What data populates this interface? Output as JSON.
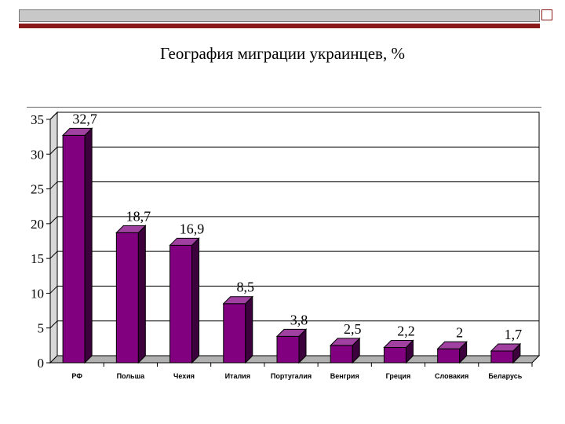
{
  "slide": {
    "title": "География миграции украинцев, %"
  },
  "colors": {
    "bar_front": "#800080",
    "bar_side": "#3c003c",
    "bar_top": "#a040a0",
    "accent_line": "#8b1a1a"
  },
  "chart_data": {
    "type": "bar",
    "title": "География миграции украинцев, %",
    "categories": [
      "РФ",
      "Польша",
      "Чехия",
      "Италия",
      "Португалия",
      "Венгрия",
      "Греция",
      "Словакия",
      "Беларусь"
    ],
    "values": [
      32.7,
      18.7,
      16.9,
      8.5,
      3.8,
      2.5,
      2.2,
      2,
      1.7
    ],
    "value_labels": [
      "32,7",
      "18,7",
      "16,9",
      "8,5",
      "3,8",
      "2,5",
      "2,2",
      "2",
      "1,7"
    ],
    "y_ticks": [
      "0",
      "5",
      "10",
      "15",
      "20",
      "25",
      "30",
      "35"
    ],
    "ylim": [
      0,
      35
    ],
    "grid": true,
    "style": "3d-bar"
  }
}
